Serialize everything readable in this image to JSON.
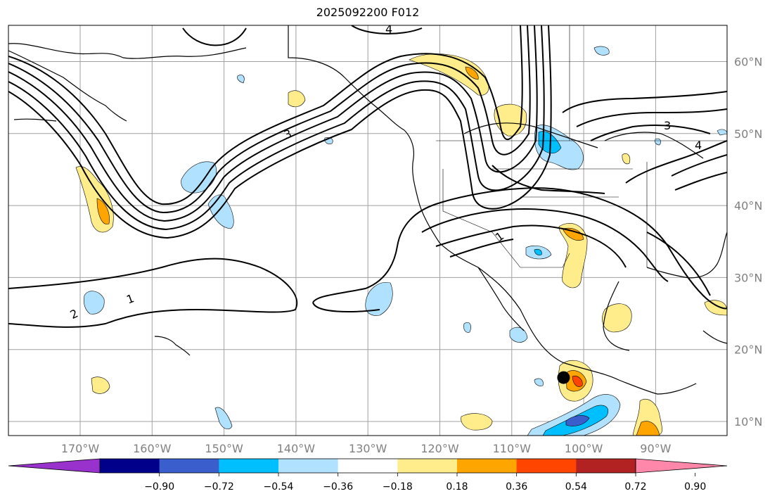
{
  "title": "2025092200 F012",
  "map": {
    "lon_ticks": [
      {
        "value": -170,
        "label": "170°W"
      },
      {
        "value": -160,
        "label": "160°W"
      },
      {
        "value": -150,
        "label": "150°W"
      },
      {
        "value": -140,
        "label": "140°W"
      },
      {
        "value": -130,
        "label": "130°W"
      },
      {
        "value": -120,
        "label": "120°W"
      },
      {
        "value": -110,
        "label": "110°W"
      },
      {
        "value": -100,
        "label": "100°W"
      },
      {
        "value": -90,
        "label": "90°W"
      }
    ],
    "lat_ticks": [
      {
        "value": 10,
        "label": "10°N"
      },
      {
        "value": 20,
        "label": "20°N"
      },
      {
        "value": 30,
        "label": "30°N"
      },
      {
        "value": 40,
        "label": "40°N"
      },
      {
        "value": 50,
        "label": "50°N"
      },
      {
        "value": 60,
        "label": "60°N"
      }
    ],
    "contour_labels": [
      "1",
      "2",
      "3",
      "4"
    ],
    "marker": {
      "lon": -102.8,
      "lat": 16.1
    },
    "colors": {
      "coast": "#000000",
      "grid": "#a0a0a0",
      "contour": "#000000"
    }
  },
  "colorbar": {
    "labels": [
      "−0.90",
      "−0.72",
      "−0.54",
      "−0.36",
      "−0.18",
      "0.18",
      "0.36",
      "0.54",
      "0.72",
      "0.90"
    ],
    "colors": [
      "#9932cc",
      "#00008b",
      "#3a5fcd",
      "#00bfff",
      "#b0e2ff",
      "#ffffff",
      "#ffec8b",
      "#ffa500",
      "#ff4500",
      "#b22222",
      "#ff88aa"
    ]
  }
}
